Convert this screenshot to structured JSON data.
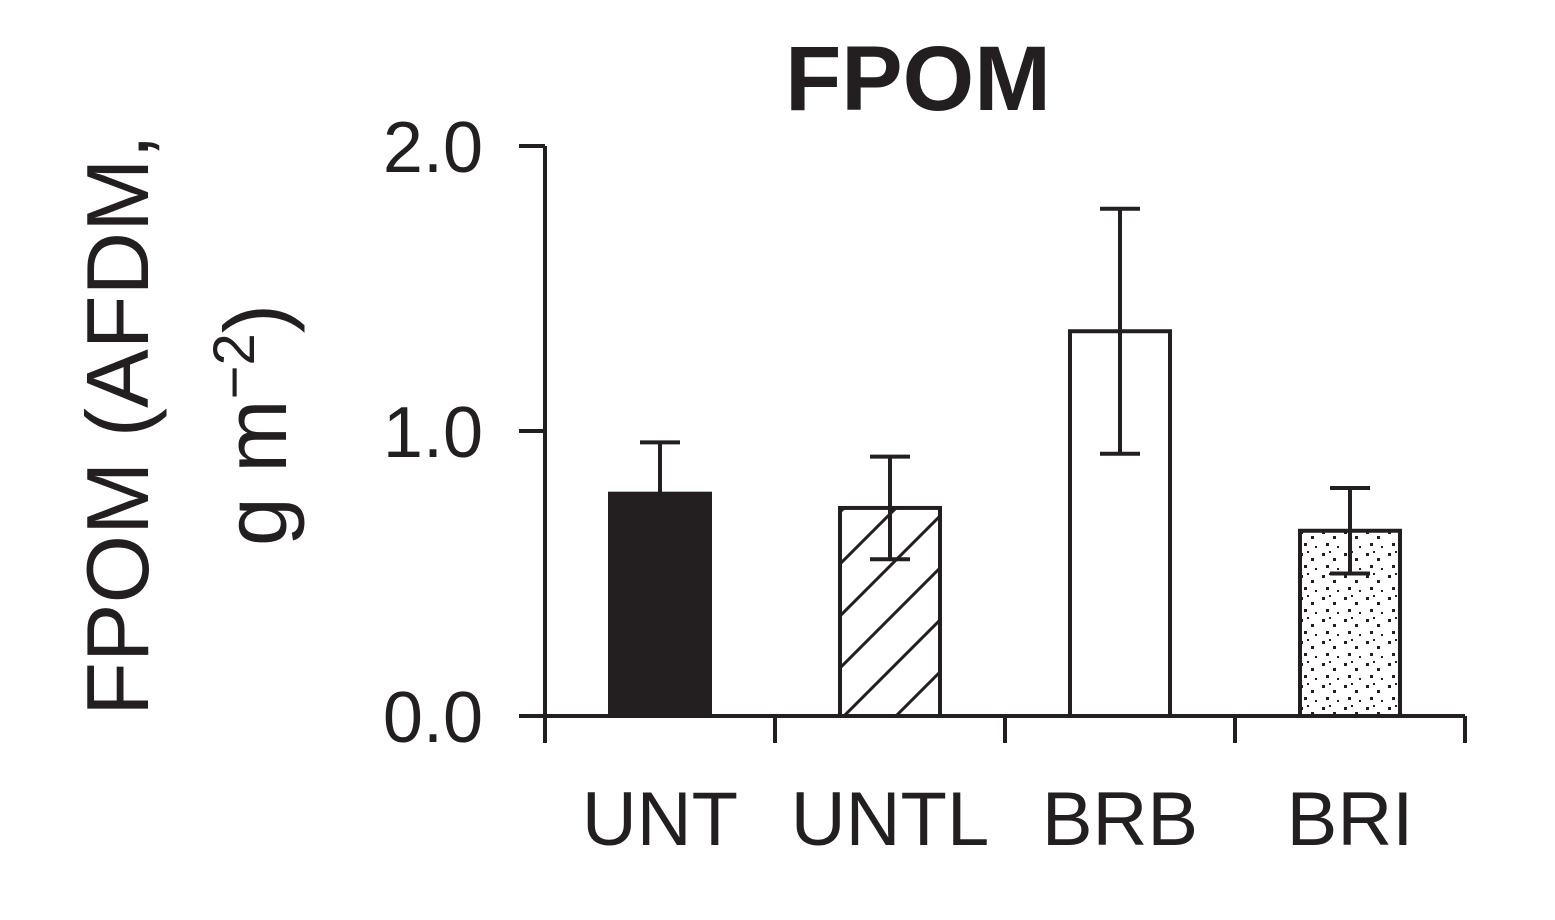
{
  "chart_data": {
    "type": "bar",
    "title": "FPOM",
    "ylabel_line1": "FPOM (AFDM,",
    "ylabel_line2_prefix": "g m",
    "ylabel_line2_sup": "−2",
    "ylabel_line2_suffix": ")",
    "xlabel": "",
    "categories": [
      "UNT",
      "UNTL",
      "BRB",
      "BRI"
    ],
    "values": [
      0.78,
      0.73,
      1.35,
      0.65
    ],
    "errors": [
      0.18,
      0.18,
      0.43,
      0.15
    ],
    "fills": [
      "solid",
      "hatch",
      "empty",
      "dots"
    ],
    "ylim": [
      0,
      2
    ],
    "yticks": [
      0,
      1,
      2
    ],
    "ytick_labels": [
      "0.0",
      "1.0",
      "2.0"
    ],
    "grid": false,
    "legend": "none",
    "colors": {
      "ink": "#231f20",
      "background": "#ffffff"
    }
  }
}
